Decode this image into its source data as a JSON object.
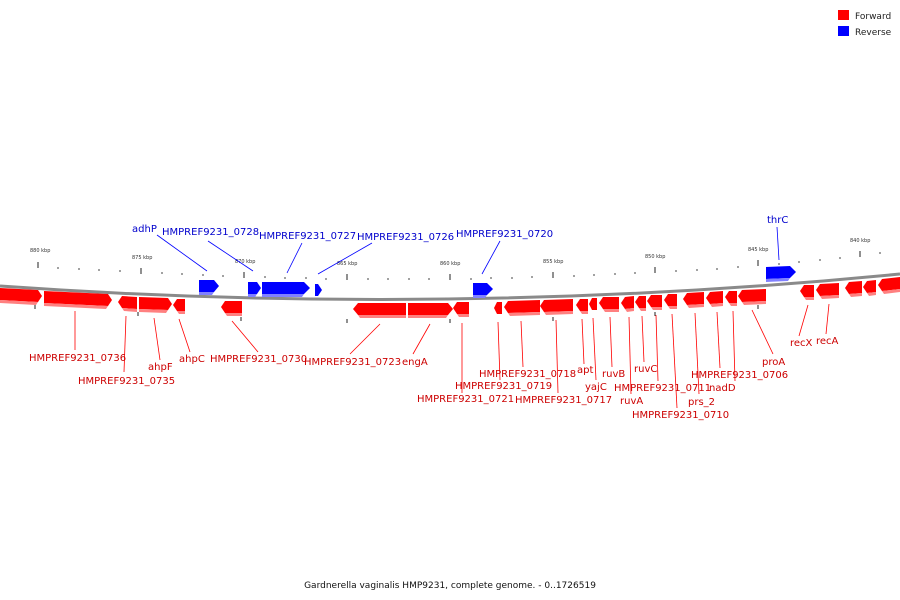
{
  "legend": {
    "forward": {
      "label": "Forward",
      "color": "#ff0000"
    },
    "reverse": {
      "label": "Reverse",
      "color": "#0000ff"
    }
  },
  "caption": "Gardnerella vaginalis HMP9231, complete genome. - 0..1726519",
  "scale_labels": [
    "880 kbp",
    "875 kbp",
    "870 kbp",
    "865 kbp",
    "860 kbp",
    "855 kbp",
    "850 kbp",
    "845 kbp",
    "840 kbp"
  ],
  "forward_genes": [
    "HMPREF9231_0736",
    "HMPREF9231_0735",
    "ahpF",
    "ahpC",
    "HMPREF9231_0730",
    "HMPREF9231_0723",
    "engA",
    "HMPREF9231_0721",
    "HMPREF9231_0719",
    "HMPREF9231_0718",
    "HMPREF9231_0717",
    "apt",
    "yajC",
    "ruvB",
    "ruvA",
    "ruvC",
    "HMPREF9231_0711",
    "HMPREF9231_0710",
    "prs_2",
    "HMPREF9231_0706",
    "nadD",
    "proA",
    "recX",
    "recA"
  ],
  "reverse_genes": [
    "adhP",
    "HMPREF9231_0728",
    "HMPREF9231_0727",
    "HMPREF9231_0726",
    "HMPREF9231_0720",
    "thrC"
  ]
}
